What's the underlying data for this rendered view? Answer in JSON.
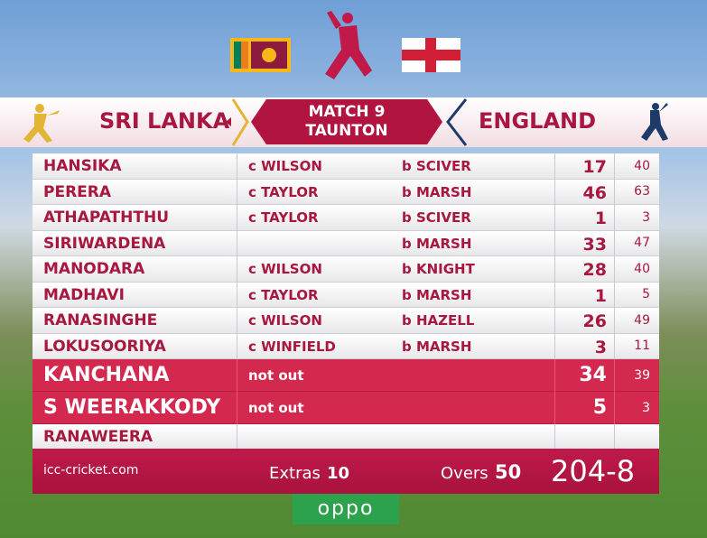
{
  "header": {
    "team1": "SRI LANKA",
    "team2": "ENGLAND",
    "match": "MATCH 9",
    "venue": "TAUNTON"
  },
  "batting": [
    {
      "name": "HANSIKA",
      "dismissal": "c WILSON",
      "bowler": "b SCIVER",
      "runs": 17,
      "balls": 40
    },
    {
      "name": "PERERA",
      "dismissal": "c TAYLOR",
      "bowler": "b MARSH",
      "runs": 46,
      "balls": 63
    },
    {
      "name": "ATHAPATHTHU",
      "dismissal": "c TAYLOR",
      "bowler": "b SCIVER",
      "runs": 1,
      "balls": 3
    },
    {
      "name": "SIRIWARDENA",
      "bowler": "b MARSH",
      "runs": 33,
      "balls": 47
    },
    {
      "name": "MANODARA",
      "dismissal": "c WILSON",
      "bowler": "b KNIGHT",
      "runs": 28,
      "balls": 40
    },
    {
      "name": "MADHAVI",
      "dismissal": "c TAYLOR",
      "bowler": "b MARSH",
      "runs": 1,
      "balls": 5
    },
    {
      "name": "RANASINGHE",
      "dismissal": "c WILSON",
      "bowler": "b HAZELL",
      "runs": 26,
      "balls": 49
    },
    {
      "name": "LOKUSOORIYA",
      "dismissal": "c WINFIELD",
      "bowler": "b MARSH",
      "runs": 3,
      "balls": 11
    },
    {
      "name": "KANCHANA",
      "dismissal": "not out",
      "runs": 34,
      "balls": 39
    },
    {
      "name": "S WEERAKKODY",
      "dismissal": "not out",
      "runs": 5,
      "balls": 3
    },
    {
      "name": "RANAWEERA"
    }
  ],
  "footer": {
    "website": "icc-cricket.com",
    "extras_label": "Extras",
    "extras": 10,
    "overs_label": "Overs",
    "overs": 50,
    "score": "204-8"
  },
  "sponsor": "oppo"
}
